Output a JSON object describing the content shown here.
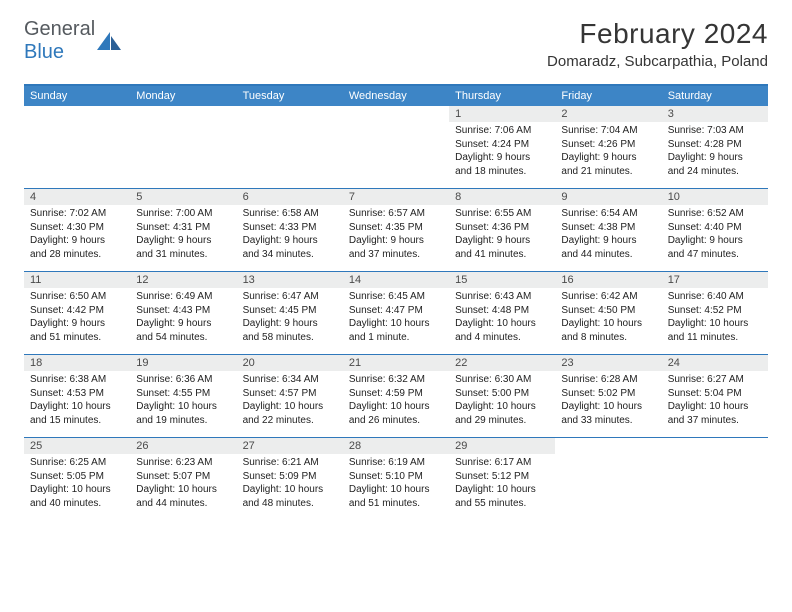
{
  "logo": {
    "textA": "General",
    "textB": "Blue"
  },
  "title": "February 2024",
  "location": "Domaradz, Subcarpathia, Poland",
  "colors": {
    "headerbar": "#3d85c6",
    "rule": "#2f78bb",
    "daynum_bg": "#eceded",
    "text": "#222222",
    "logo_gray": "#555a5f",
    "logo_blue": "#2f78bb",
    "page_bg": "#ffffff"
  },
  "dayNames": [
    "Sunday",
    "Monday",
    "Tuesday",
    "Wednesday",
    "Thursday",
    "Friday",
    "Saturday"
  ],
  "weeks": [
    [
      null,
      null,
      null,
      null,
      {
        "n": "1",
        "sunrise": "Sunrise: 7:06 AM",
        "sunset": "Sunset: 4:24 PM",
        "dlA": "Daylight: 9 hours",
        "dlB": "and 18 minutes."
      },
      {
        "n": "2",
        "sunrise": "Sunrise: 7:04 AM",
        "sunset": "Sunset: 4:26 PM",
        "dlA": "Daylight: 9 hours",
        "dlB": "and 21 minutes."
      },
      {
        "n": "3",
        "sunrise": "Sunrise: 7:03 AM",
        "sunset": "Sunset: 4:28 PM",
        "dlA": "Daylight: 9 hours",
        "dlB": "and 24 minutes."
      }
    ],
    [
      {
        "n": "4",
        "sunrise": "Sunrise: 7:02 AM",
        "sunset": "Sunset: 4:30 PM",
        "dlA": "Daylight: 9 hours",
        "dlB": "and 28 minutes."
      },
      {
        "n": "5",
        "sunrise": "Sunrise: 7:00 AM",
        "sunset": "Sunset: 4:31 PM",
        "dlA": "Daylight: 9 hours",
        "dlB": "and 31 minutes."
      },
      {
        "n": "6",
        "sunrise": "Sunrise: 6:58 AM",
        "sunset": "Sunset: 4:33 PM",
        "dlA": "Daylight: 9 hours",
        "dlB": "and 34 minutes."
      },
      {
        "n": "7",
        "sunrise": "Sunrise: 6:57 AM",
        "sunset": "Sunset: 4:35 PM",
        "dlA": "Daylight: 9 hours",
        "dlB": "and 37 minutes."
      },
      {
        "n": "8",
        "sunrise": "Sunrise: 6:55 AM",
        "sunset": "Sunset: 4:36 PM",
        "dlA": "Daylight: 9 hours",
        "dlB": "and 41 minutes."
      },
      {
        "n": "9",
        "sunrise": "Sunrise: 6:54 AM",
        "sunset": "Sunset: 4:38 PM",
        "dlA": "Daylight: 9 hours",
        "dlB": "and 44 minutes."
      },
      {
        "n": "10",
        "sunrise": "Sunrise: 6:52 AM",
        "sunset": "Sunset: 4:40 PM",
        "dlA": "Daylight: 9 hours",
        "dlB": "and 47 minutes."
      }
    ],
    [
      {
        "n": "11",
        "sunrise": "Sunrise: 6:50 AM",
        "sunset": "Sunset: 4:42 PM",
        "dlA": "Daylight: 9 hours",
        "dlB": "and 51 minutes."
      },
      {
        "n": "12",
        "sunrise": "Sunrise: 6:49 AM",
        "sunset": "Sunset: 4:43 PM",
        "dlA": "Daylight: 9 hours",
        "dlB": "and 54 minutes."
      },
      {
        "n": "13",
        "sunrise": "Sunrise: 6:47 AM",
        "sunset": "Sunset: 4:45 PM",
        "dlA": "Daylight: 9 hours",
        "dlB": "and 58 minutes."
      },
      {
        "n": "14",
        "sunrise": "Sunrise: 6:45 AM",
        "sunset": "Sunset: 4:47 PM",
        "dlA": "Daylight: 10 hours",
        "dlB": "and 1 minute."
      },
      {
        "n": "15",
        "sunrise": "Sunrise: 6:43 AM",
        "sunset": "Sunset: 4:48 PM",
        "dlA": "Daylight: 10 hours",
        "dlB": "and 4 minutes."
      },
      {
        "n": "16",
        "sunrise": "Sunrise: 6:42 AM",
        "sunset": "Sunset: 4:50 PM",
        "dlA": "Daylight: 10 hours",
        "dlB": "and 8 minutes."
      },
      {
        "n": "17",
        "sunrise": "Sunrise: 6:40 AM",
        "sunset": "Sunset: 4:52 PM",
        "dlA": "Daylight: 10 hours",
        "dlB": "and 11 minutes."
      }
    ],
    [
      {
        "n": "18",
        "sunrise": "Sunrise: 6:38 AM",
        "sunset": "Sunset: 4:53 PM",
        "dlA": "Daylight: 10 hours",
        "dlB": "and 15 minutes."
      },
      {
        "n": "19",
        "sunrise": "Sunrise: 6:36 AM",
        "sunset": "Sunset: 4:55 PM",
        "dlA": "Daylight: 10 hours",
        "dlB": "and 19 minutes."
      },
      {
        "n": "20",
        "sunrise": "Sunrise: 6:34 AM",
        "sunset": "Sunset: 4:57 PM",
        "dlA": "Daylight: 10 hours",
        "dlB": "and 22 minutes."
      },
      {
        "n": "21",
        "sunrise": "Sunrise: 6:32 AM",
        "sunset": "Sunset: 4:59 PM",
        "dlA": "Daylight: 10 hours",
        "dlB": "and 26 minutes."
      },
      {
        "n": "22",
        "sunrise": "Sunrise: 6:30 AM",
        "sunset": "Sunset: 5:00 PM",
        "dlA": "Daylight: 10 hours",
        "dlB": "and 29 minutes."
      },
      {
        "n": "23",
        "sunrise": "Sunrise: 6:28 AM",
        "sunset": "Sunset: 5:02 PM",
        "dlA": "Daylight: 10 hours",
        "dlB": "and 33 minutes."
      },
      {
        "n": "24",
        "sunrise": "Sunrise: 6:27 AM",
        "sunset": "Sunset: 5:04 PM",
        "dlA": "Daylight: 10 hours",
        "dlB": "and 37 minutes."
      }
    ],
    [
      {
        "n": "25",
        "sunrise": "Sunrise: 6:25 AM",
        "sunset": "Sunset: 5:05 PM",
        "dlA": "Daylight: 10 hours",
        "dlB": "and 40 minutes."
      },
      {
        "n": "26",
        "sunrise": "Sunrise: 6:23 AM",
        "sunset": "Sunset: 5:07 PM",
        "dlA": "Daylight: 10 hours",
        "dlB": "and 44 minutes."
      },
      {
        "n": "27",
        "sunrise": "Sunrise: 6:21 AM",
        "sunset": "Sunset: 5:09 PM",
        "dlA": "Daylight: 10 hours",
        "dlB": "and 48 minutes."
      },
      {
        "n": "28",
        "sunrise": "Sunrise: 6:19 AM",
        "sunset": "Sunset: 5:10 PM",
        "dlA": "Daylight: 10 hours",
        "dlB": "and 51 minutes."
      },
      {
        "n": "29",
        "sunrise": "Sunrise: 6:17 AM",
        "sunset": "Sunset: 5:12 PM",
        "dlA": "Daylight: 10 hours",
        "dlB": "and 55 minutes."
      },
      null,
      null
    ]
  ]
}
